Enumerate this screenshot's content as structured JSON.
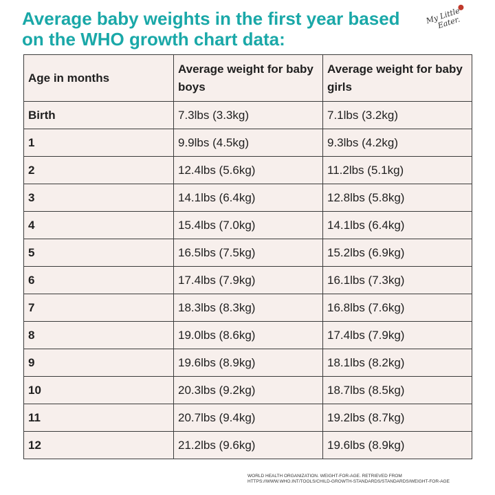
{
  "title": "Average baby weights in the first year based on the WHO growth chart data:",
  "logo": {
    "line1": "My Little",
    "line2": "Eater.",
    "icon": "strawberry-icon"
  },
  "table": {
    "headers": [
      "Age in months",
      "Average weight for baby boys",
      "Average weight for baby girls"
    ],
    "rows": [
      [
        "Birth",
        "7.3lbs (3.3kg)",
        "7.1lbs (3.2kg)"
      ],
      [
        "1",
        "9.9lbs (4.5kg)",
        "9.3lbs (4.2kg)"
      ],
      [
        "2",
        "12.4lbs (5.6kg)",
        "11.2lbs (5.1kg)"
      ],
      [
        "3",
        "14.1lbs (6.4kg)",
        "12.8lbs (5.8kg)"
      ],
      [
        "4",
        "15.4lbs (7.0kg)",
        "14.1lbs (6.4kg)"
      ],
      [
        "5",
        "16.5lbs (7.5kg)",
        "15.2lbs (6.9kg)"
      ],
      [
        "6",
        "17.4lbs (7.9kg)",
        "16.1lbs (7.3kg)"
      ],
      [
        "7",
        "18.3lbs (8.3kg)",
        "16.8lbs (7.6kg)"
      ],
      [
        "8",
        "19.0lbs (8.6kg)",
        "17.4lbs (7.9kg)"
      ],
      [
        "9",
        "19.6lbs (8.9kg)",
        "18.1lbs (8.2kg)"
      ],
      [
        "10",
        "20.3lbs (9.2kg)",
        "18.7lbs (8.5kg)"
      ],
      [
        "11",
        "20.7lbs (9.4kg)",
        "19.2lbs (8.7kg)"
      ],
      [
        "12",
        "21.2lbs (9.6kg)",
        "19.6lbs (8.9kg)"
      ]
    ]
  },
  "source": {
    "line1": "World Health Organization. Weight-for-age. Retrieved from",
    "line2": "https://www.who.int/tools/child-growth-standards/standards/weight-for-age"
  },
  "colors": {
    "title": "#1aa8a8",
    "table_bg": "#f7efec",
    "border": "#3a3a3a"
  }
}
